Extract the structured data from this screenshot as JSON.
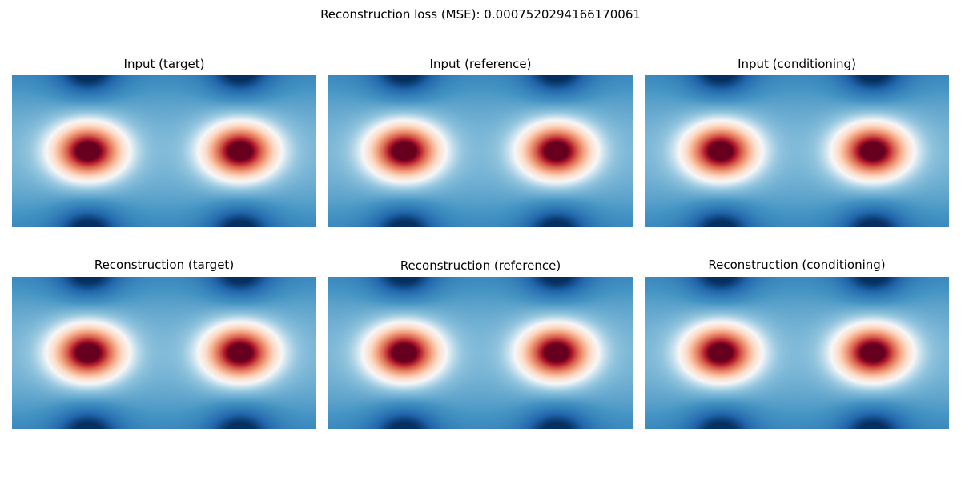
{
  "figure": {
    "suptitle": "Reconstruction loss (MSE): 0.0007520294166170061"
  },
  "chart_data": [
    {
      "type": "heatmap",
      "title": "Input (target)",
      "colormap": "RdBu_r",
      "axes_visible": false,
      "grid": false,
      "peaks": [
        {
          "x": 0.25,
          "y": 0.5
        },
        {
          "x": 0.75,
          "y": 0.5
        }
      ],
      "troughs": [
        {
          "x": 0.25,
          "y": 0.0
        },
        {
          "x": 0.75,
          "y": 0.0
        },
        {
          "x": 0.25,
          "y": 1.0
        },
        {
          "x": 0.75,
          "y": 1.0
        }
      ]
    },
    {
      "type": "heatmap",
      "title": "Input (reference)",
      "colormap": "RdBu_r",
      "axes_visible": false,
      "grid": false,
      "peaks": [
        {
          "x": 0.25,
          "y": 0.5
        },
        {
          "x": 0.75,
          "y": 0.5
        }
      ],
      "troughs": [
        {
          "x": 0.25,
          "y": 0.0
        },
        {
          "x": 0.75,
          "y": 0.0
        },
        {
          "x": 0.25,
          "y": 1.0
        },
        {
          "x": 0.75,
          "y": 1.0
        }
      ]
    },
    {
      "type": "heatmap",
      "title": "Input (conditioning)",
      "colormap": "RdBu_r",
      "axes_visible": false,
      "grid": false,
      "peaks": [
        {
          "x": 0.25,
          "y": 0.5
        },
        {
          "x": 0.75,
          "y": 0.5
        }
      ],
      "troughs": [
        {
          "x": 0.25,
          "y": 0.0
        },
        {
          "x": 0.75,
          "y": 0.0
        },
        {
          "x": 0.25,
          "y": 1.0
        },
        {
          "x": 0.75,
          "y": 1.0
        }
      ]
    },
    {
      "type": "heatmap",
      "title": "Reconstruction (target)",
      "colormap": "RdBu_r",
      "axes_visible": false,
      "grid": false,
      "peaks": [
        {
          "x": 0.25,
          "y": 0.5
        },
        {
          "x": 0.75,
          "y": 0.5
        }
      ],
      "troughs": [
        {
          "x": 0.25,
          "y": 0.0
        },
        {
          "x": 0.75,
          "y": 0.0
        },
        {
          "x": 0.25,
          "y": 1.0
        },
        {
          "x": 0.75,
          "y": 1.0
        }
      ]
    },
    {
      "type": "heatmap",
      "title": "Reconstruction (reference)",
      "colormap": "RdBu_r",
      "axes_visible": false,
      "grid": false,
      "peaks": [
        {
          "x": 0.25,
          "y": 0.5
        },
        {
          "x": 0.75,
          "y": 0.5
        }
      ],
      "troughs": [
        {
          "x": 0.25,
          "y": 0.0
        },
        {
          "x": 0.75,
          "y": 0.0
        },
        {
          "x": 0.25,
          "y": 1.0
        },
        {
          "x": 0.75,
          "y": 1.0
        }
      ]
    },
    {
      "type": "heatmap",
      "title": "Reconstruction (conditioning)",
      "colormap": "RdBu_r",
      "axes_visible": false,
      "grid": false,
      "peaks": [
        {
          "x": 0.25,
          "y": 0.5
        },
        {
          "x": 0.75,
          "y": 0.5
        }
      ],
      "troughs": [
        {
          "x": 0.25,
          "y": 0.0
        },
        {
          "x": 0.75,
          "y": 0.0
        },
        {
          "x": 0.25,
          "y": 1.0
        },
        {
          "x": 0.75,
          "y": 1.0
        }
      ]
    }
  ]
}
